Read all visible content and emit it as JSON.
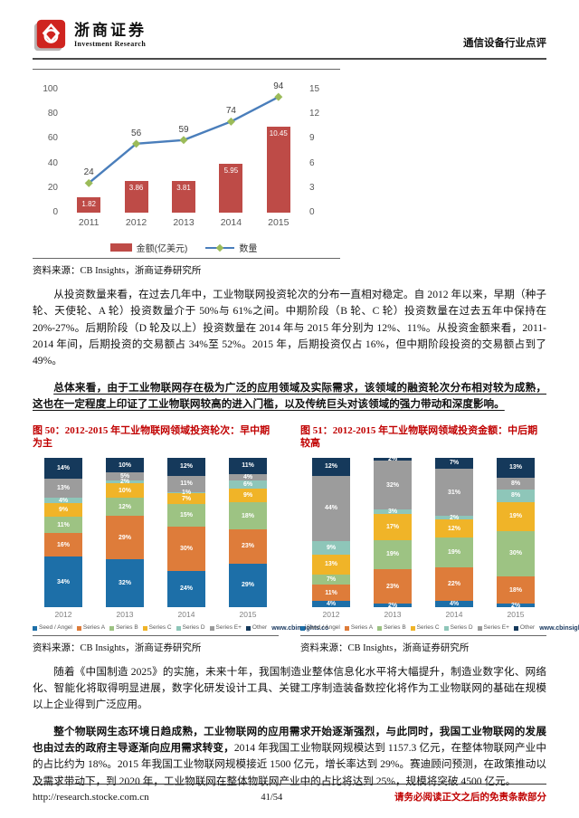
{
  "header": {
    "brand_cn": "浙商证券",
    "brand_en": "Investment Research",
    "doc_type": "通信设备行业点评"
  },
  "chart_data": [
    {
      "type": "combo-bar-line",
      "categories": [
        "2011",
        "2012",
        "2013",
        "2014",
        "2015"
      ],
      "series": [
        {
          "name": "金额(亿美元)",
          "type": "bar",
          "axis": "right",
          "color": "#be4b47",
          "values": [
            1.82,
            3.86,
            3.81,
            5.95,
            10.45
          ]
        },
        {
          "name": "数量",
          "type": "line",
          "axis": "left",
          "color": "#4a7ebb",
          "marker_color": "#9bbb59",
          "values": [
            24,
            56,
            59,
            74,
            94
          ]
        }
      ],
      "left_axis": {
        "min": 0,
        "max": 100,
        "ticks": [
          0,
          20,
          40,
          60,
          80,
          100
        ]
      },
      "right_axis": {
        "min": 0,
        "max": 15,
        "ticks": [
          0,
          3,
          6,
          9,
          12,
          15
        ]
      },
      "grid": false,
      "legend_position": "bottom",
      "source": "资料来源：CB Insights，浙商证券研究所"
    },
    {
      "type": "bar",
      "subtype": "stacked-percent",
      "title": "图 50：2012-2015 年工业物联网领域投资轮次：早中期为主",
      "categories": [
        "2012",
        "2013",
        "2014",
        "2015"
      ],
      "series": [
        {
          "name": "Seed / Angel",
          "color": "#1d6fa8",
          "values": [
            34,
            32,
            24,
            29
          ]
        },
        {
          "name": "Series A",
          "color": "#de7c3a",
          "values": [
            16,
            29,
            30,
            23
          ]
        },
        {
          "name": "Series B",
          "color": "#9dc383",
          "values": [
            11,
            12,
            15,
            18
          ]
        },
        {
          "name": "Series C",
          "color": "#f0b428",
          "values": [
            9,
            10,
            7,
            9
          ]
        },
        {
          "name": "Series D",
          "color": "#8ec6b9",
          "values": [
            4,
            2,
            1,
            6
          ]
        },
        {
          "name": "Series E+",
          "color": "#9c9c9c",
          "values": [
            13,
            5,
            11,
            4
          ]
        },
        {
          "name": "Other",
          "color": "#15395b",
          "values": [
            14,
            10,
            12,
            11
          ]
        }
      ],
      "value_suffix": "%",
      "watermark": "www.cbinsights.co",
      "source": "资料来源：CB Insights，浙商证券研究所"
    },
    {
      "type": "bar",
      "subtype": "stacked-percent",
      "title": "图 51：2012-2015 年工业物联网领域投资金额：中后期较高",
      "categories": [
        "2012",
        "2013",
        "2014",
        "2015"
      ],
      "series": [
        {
          "name": "Seed / Angel",
          "color": "#1d6fa8",
          "values": [
            4,
            2,
            4,
            2
          ]
        },
        {
          "name": "Series A",
          "color": "#de7c3a",
          "values": [
            11,
            23,
            22,
            18
          ]
        },
        {
          "name": "Series B",
          "color": "#9dc383",
          "values": [
            7,
            19,
            19,
            30
          ]
        },
        {
          "name": "Series C",
          "color": "#f0b428",
          "values": [
            13,
            17,
            12,
            19
          ]
        },
        {
          "name": "Series D",
          "color": "#8ec6b9",
          "values": [
            9,
            3,
            2,
            8
          ]
        },
        {
          "name": "Series E+",
          "color": "#9c9c9c",
          "values": [
            44,
            32,
            31,
            8
          ]
        },
        {
          "name": "Other",
          "color": "#15395b",
          "values": [
            12,
            2,
            7,
            13
          ]
        }
      ],
      "value_suffix": "%",
      "watermark": "www.cbinsights.com",
      "source": "资料来源：CB Insights，浙商证券研究所"
    }
  ],
  "paragraphs": {
    "p1": "从投资数量来看，在过去几年中，工业物联网投资轮次的分布一直相对稳定。自 2012 年以来，早期（种子轮、天使轮、A 轮）投资数量介于 50%与 61%之间。中期阶段（B 轮、C 轮）投资数量在过去五年中保持在 20%-27%。后期阶段（D 轮及以上）投资数量在 2014 年与 2015 年分别为 12%、11%。从投资金额来看，2011-2014 年间，后期投资的交易额占 34%至 52%。2015 年，后期投资仅占 16%，但中期阶段投资的交易额占到了 49%。",
    "p2": "总体来看，由于工业物联网存在极为广泛的应用领域及实际需求，该领域的融资轮次分布相对较为成熟，这也在一定程度上印证了工业物联网较高的进入门槛，以及传统巨头对该领域的强力带动和深度影响。",
    "p3": "随着《中国制造 2025》的实施，未来十年，我国制造业整体信息化水平将大幅提升，制造业数字化、网络化、智能化将取得明显进展，数字化研发设计工具、关键工序制造装备数控化将作为工业物联网的基础在规模以上企业得到广泛应用。",
    "p4_bold": "整个物联网生态环境日趋成熟，工业物联网的应用需求开始逐渐强烈，与此同时，我国工业物联网的发展也由过去的政府主导逐渐向应用需求转变，",
    "p4_rest": "2014 年我国工业物联网规模达到 1157.3 亿元，在整体物联网产业中的占比约为 18%。2015 年我国工业物联网规模接近 1500 亿元，增长率达到 29%。赛迪顾问预测，在政策推动以及需求带动下，到 2020 年，工业物联网在整体物联网产业中的占比将达到 25%，规模将突破 4500 亿元。"
  },
  "footer": {
    "url": "http://research.stocke.com.cn",
    "page": "41/54",
    "disclaimer": "请务必阅读正文之后的免责条款部分"
  }
}
